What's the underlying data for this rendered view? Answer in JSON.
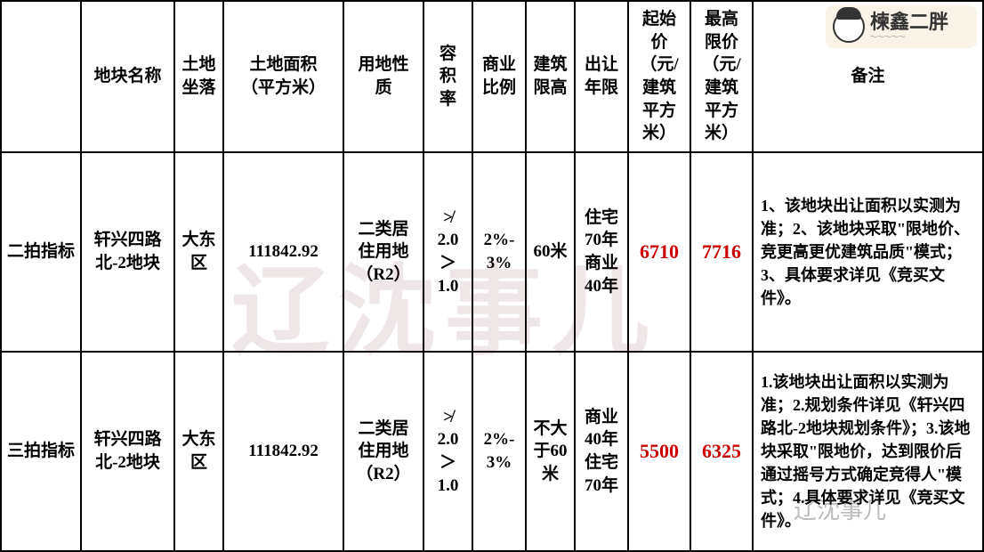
{
  "table": {
    "headers": {
      "plot_name": "地块名称",
      "location": "土地\n坐落",
      "area": "土地面积\n（平方米）",
      "land_use": "用地性\n质",
      "far": "容\n积\n率",
      "commercial_ratio": "商业\n比例",
      "height_limit": "建筑\n限高",
      "transfer_term": "出让\n年限",
      "start_price": "起始\n价\n（元/\n建筑\n平方\n米）",
      "max_price": "最高\n限价\n（元/\n建筑\n平方\n米）",
      "notes": "备注"
    },
    "rows": [
      {
        "row_label": "二拍指标",
        "plot_name": "轩兴四路\n北-2地块",
        "location": "大东\n区",
        "area": "111842.92",
        "land_use": "二类居\n住用地\n（R2）",
        "far": "≯\n2.0\n＞\n1.0",
        "commercial_ratio": "2%-\n3%",
        "height_limit": "60米",
        "transfer_term": "住宅\n70年\n商业\n40年",
        "start_price": "6710",
        "max_price": "7716",
        "notes": "1、该地块出让面积以实测为准；2、该地块采取\"限地价、竞更高更优建筑品质\"模式；3、具体要求详见《竞买文件》。"
      },
      {
        "row_label": "三拍指标",
        "plot_name": "轩兴四路\n北-2地块",
        "location": "大东\n区",
        "area": "111842.92",
        "land_use": "二类居\n住用地\n（R2）",
        "far": "≯\n2.0\n＞\n1.0",
        "commercial_ratio": "2%-\n3%",
        "height_limit": "不大\n于60\n米",
        "transfer_term": "商业\n40年\n住宅\n70年",
        "start_price": "5500",
        "max_price": "6325",
        "notes": "1.该地块出让面积以实测为准；2.规划条件详见《轩兴四路北-2地块规划条件》；3.该地块采取\"限地价，达到限价后通过摇号方式确定竞得人\"模式；4.具体要求详见《竞买文件》。"
      }
    ],
    "header_row_height": 170,
    "data_row_height": 222
  },
  "watermarks": {
    "center": "辽沈事儿",
    "corner": "辽沈事儿",
    "badge_text": "楝鑫二胖"
  },
  "style": {
    "border_color": "#000000",
    "price_color": "#cc0000",
    "bg_color": "#ffffff",
    "font_main": "SimSun",
    "title_fontsize": 19,
    "notes_fontsize": 18,
    "price_fontsize": 22
  }
}
